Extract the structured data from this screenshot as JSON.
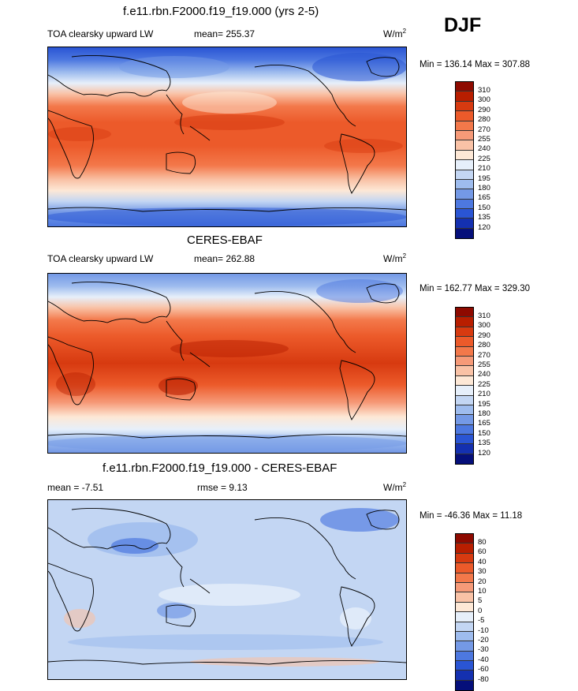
{
  "season": "DJF",
  "panels": [
    {
      "key": "model",
      "title": "f.e11.rbn.F2000.f19_f19.000 (yrs 2-5)",
      "left_label": "TOA clearsky upward LW",
      "stat_label": "mean= 255.37",
      "unit": "W/m",
      "unit_sup": "2",
      "minmax": "Min = 136.14 Max = 307.88"
    },
    {
      "key": "obs",
      "title": "CERES-EBAF",
      "left_label": "TOA clearsky upward LW",
      "stat_label": "mean= 262.88",
      "unit": "W/m",
      "unit_sup": "2",
      "minmax": "Min = 162.77 Max = 329.30"
    },
    {
      "key": "diff",
      "title": "f.e11.rbn.F2000.f19_f19.000 - CERES-EBAF",
      "left_label": "mean =  -7.51",
      "stat_label": "rmse =   9.13",
      "unit": "W/m",
      "unit_sup": "2",
      "minmax": "Min = -46.36 Max =  11.18"
    }
  ],
  "colorbars": {
    "abs": {
      "levels": [
        "310",
        "300",
        "290",
        "280",
        "270",
        "255",
        "240",
        "225",
        "210",
        "195",
        "180",
        "165",
        "150",
        "135",
        "120"
      ],
      "colors": [
        "#8e0a00",
        "#b81e00",
        "#d73a10",
        "#ec5a2a",
        "#f3784a",
        "#f69a78",
        "#f9c2a6",
        "#fde8d6",
        "#e6effa",
        "#c3d6f3",
        "#9ebcee",
        "#7499e6",
        "#4d78e0",
        "#2a55d4",
        "#1430b0",
        "#050f7a"
      ]
    },
    "diff": {
      "levels": [
        "80",
        "60",
        "40",
        "30",
        "20",
        "10",
        "5",
        "0",
        "-5",
        "-10",
        "-20",
        "-30",
        "-40",
        "-60",
        "-80"
      ],
      "colors": [
        "#8e0a00",
        "#b81e00",
        "#d73a10",
        "#ec5a2a",
        "#f3784a",
        "#f69a78",
        "#f9c2a6",
        "#fde8d6",
        "#e6effa",
        "#c3d6f3",
        "#9ebcee",
        "#7499e6",
        "#4d78e0",
        "#2a55d4",
        "#1430b0",
        "#050f7a"
      ]
    }
  }
}
